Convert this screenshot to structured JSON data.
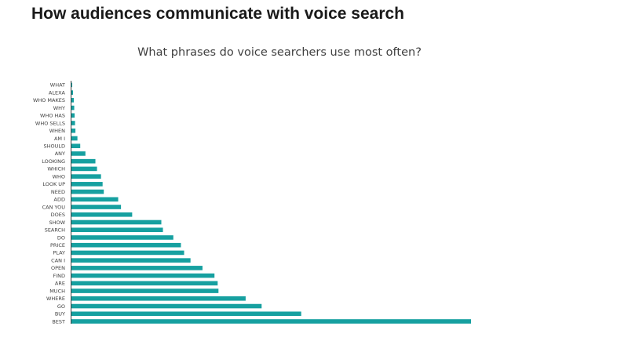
{
  "page": {
    "heading": "How audiences communicate with voice search"
  },
  "colors": {
    "bar": "#16a0a0",
    "axis": "#404040",
    "heading": "#1a1a1a"
  },
  "chart_data": {
    "type": "bar",
    "orientation": "horizontal",
    "title": "What phrases do voice searchers use most often?",
    "xlabel": "",
    "ylabel": "",
    "categories": [
      "WHAT",
      "ALEXA",
      "WHO MAKES",
      "WHY",
      "WHO HAS",
      "WHO SELLS",
      "WHEN",
      "AM I",
      "SHOULD",
      "ANY",
      "LOOKING",
      "WHICH",
      "WHO",
      "LOOK UP",
      "NEED",
      "ADD",
      "CAN YOU",
      "DOES",
      "SHOW",
      "SEARCH",
      "DO",
      "PRICE",
      "PLAY",
      "CAN I",
      "OPEN",
      "FIND",
      "ARE",
      "MUCH",
      "WHERE",
      "GO",
      "BUY",
      "BEST"
    ],
    "values": [
      0.2,
      0.4,
      0.6,
      0.7,
      0.8,
      0.9,
      1.0,
      1.5,
      2.2,
      3.5,
      6.0,
      6.4,
      7.4,
      7.8,
      8.1,
      11.7,
      12.4,
      15.2,
      22.5,
      22.9,
      25.5,
      27.4,
      28.2,
      29.8,
      32.8,
      35.8,
      36.6,
      36.8,
      43.6,
      47.6,
      57.5,
      100
    ],
    "xlim": [
      0,
      100
    ],
    "grid": false,
    "legend": "none"
  }
}
